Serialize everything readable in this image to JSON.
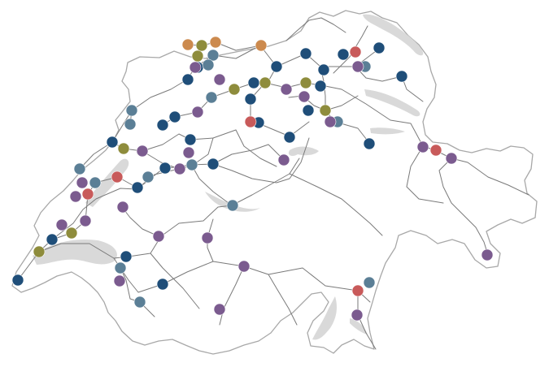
{
  "map": {
    "category_colors": {
      "navy": "#1f4e79",
      "slate": "#5b7f96",
      "purple": "#7b5b8f",
      "olive": "#8e8c3c",
      "red": "#c85a5a",
      "orange": "#cc8a4e"
    },
    "stations": [
      {
        "category": "orange"
      },
      {
        "category": "orange"
      },
      {
        "category": "orange"
      },
      {
        "category": "orange"
      },
      {
        "category": "red"
      },
      {
        "category": "red"
      },
      {
        "category": "red"
      },
      {
        "category": "red"
      },
      {
        "category": "red"
      },
      {
        "category": "red"
      }
    ]
  }
}
